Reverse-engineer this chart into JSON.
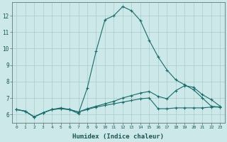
{
  "title": "",
  "xlabel": "Humidex (Indice chaleur)",
  "ylabel": "",
  "background_color": "#cce8e8",
  "grid_color": "#aacccc",
  "line_color": "#1a6b6b",
  "x_ticks": [
    0,
    1,
    2,
    3,
    4,
    5,
    6,
    7,
    8,
    9,
    10,
    11,
    12,
    13,
    14,
    15,
    16,
    17,
    18,
    19,
    20,
    21,
    22,
    23
  ],
  "y_ticks": [
    6,
    7,
    8,
    9,
    10,
    11,
    12
  ],
  "xlim": [
    -0.5,
    23.5
  ],
  "ylim": [
    5.5,
    12.8
  ],
  "line1_y": [
    6.3,
    6.2,
    5.85,
    6.1,
    6.3,
    6.4,
    6.3,
    6.05,
    7.6,
    9.85,
    11.75,
    12.0,
    12.55,
    12.3,
    11.7,
    10.5,
    9.5,
    8.7,
    8.1,
    7.8,
    7.5,
    7.0,
    6.5,
    6.45
  ],
  "line2_y": [
    6.3,
    6.2,
    5.85,
    6.1,
    6.3,
    6.35,
    6.3,
    6.15,
    6.3,
    6.45,
    6.55,
    6.65,
    6.75,
    6.85,
    6.95,
    7.0,
    6.35,
    6.35,
    6.4,
    6.4,
    6.4,
    6.4,
    6.45,
    6.45
  ],
  "line3_y": [
    6.3,
    6.2,
    5.85,
    6.1,
    6.3,
    6.35,
    6.3,
    6.15,
    6.35,
    6.5,
    6.65,
    6.8,
    7.0,
    7.15,
    7.3,
    7.4,
    7.1,
    6.95,
    7.45,
    7.75,
    7.65,
    7.2,
    6.9,
    6.5
  ]
}
